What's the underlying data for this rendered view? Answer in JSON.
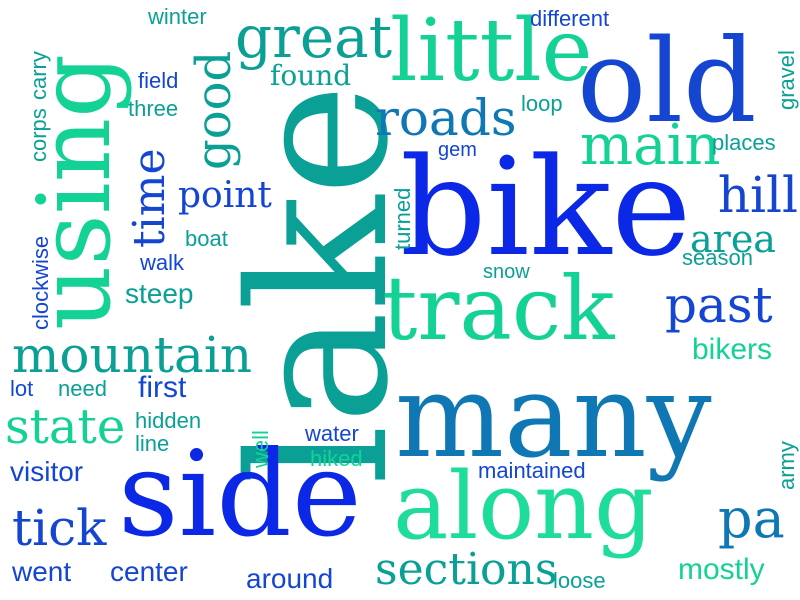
{
  "colors": {
    "blue": "#0a28e6",
    "royal": "#1446d2",
    "steel": "#0f78b4",
    "teal": "#0aa096",
    "green": "#14d296",
    "mint": "#1edc9a"
  },
  "words": [
    {
      "text": "lake",
      "color": "teal"
    },
    {
      "text": "using",
      "color": "green"
    },
    {
      "text": "bike",
      "color": "blue"
    },
    {
      "text": "many",
      "color": "steel"
    },
    {
      "text": "side",
      "color": "blue"
    },
    {
      "text": "along",
      "color": "mint"
    },
    {
      "text": "old",
      "color": "royal"
    },
    {
      "text": "track",
      "color": "green"
    },
    {
      "text": "little",
      "color": "green"
    },
    {
      "text": "great",
      "color": "teal"
    },
    {
      "text": "roads",
      "color": "steel"
    },
    {
      "text": "main",
      "color": "green"
    },
    {
      "text": "mountain",
      "color": "teal"
    },
    {
      "text": "past",
      "color": "royal"
    },
    {
      "text": "hill",
      "color": "royal"
    },
    {
      "text": "good",
      "color": "teal"
    },
    {
      "text": "time",
      "color": "royal"
    },
    {
      "text": "state",
      "color": "green"
    },
    {
      "text": "tick",
      "color": "royal"
    },
    {
      "text": "pa",
      "color": "steel"
    },
    {
      "text": "sections",
      "color": "teal"
    },
    {
      "text": "area",
      "color": "teal"
    },
    {
      "text": "point",
      "color": "royal"
    },
    {
      "text": "found",
      "color": "teal"
    },
    {
      "text": "winter",
      "color": "teal"
    },
    {
      "text": "different",
      "color": "royal"
    },
    {
      "text": "carry",
      "color": "teal"
    },
    {
      "text": "field",
      "color": "royal"
    },
    {
      "text": "three",
      "color": "teal"
    },
    {
      "text": "corps",
      "color": "teal"
    },
    {
      "text": "loop",
      "color": "teal"
    },
    {
      "text": "gravel",
      "color": "teal"
    },
    {
      "text": "places",
      "color": "teal"
    },
    {
      "text": "gem",
      "color": "royal"
    },
    {
      "text": "turned",
      "color": "teal"
    },
    {
      "text": "snow",
      "color": "teal"
    },
    {
      "text": "season",
      "color": "teal"
    },
    {
      "text": "boat",
      "color": "teal"
    },
    {
      "text": "walk",
      "color": "royal"
    },
    {
      "text": "steep",
      "color": "teal"
    },
    {
      "text": "clockwise",
      "color": "royal"
    },
    {
      "text": "bikers",
      "color": "green"
    },
    {
      "text": "first",
      "color": "royal"
    },
    {
      "text": "lot",
      "color": "royal"
    },
    {
      "text": "need",
      "color": "teal"
    },
    {
      "text": "hidden",
      "color": "teal"
    },
    {
      "text": "line",
      "color": "teal"
    },
    {
      "text": "well",
      "color": "green"
    },
    {
      "text": "water",
      "color": "royal"
    },
    {
      "text": "hiked",
      "color": "green"
    },
    {
      "text": "visitor",
      "color": "royal"
    },
    {
      "text": "maintained",
      "color": "royal"
    },
    {
      "text": "army",
      "color": "teal"
    },
    {
      "text": "went",
      "color": "royal"
    },
    {
      "text": "center",
      "color": "royal"
    },
    {
      "text": "around",
      "color": "royal"
    },
    {
      "text": "loose",
      "color": "teal"
    },
    {
      "text": "mostly",
      "color": "green"
    }
  ]
}
